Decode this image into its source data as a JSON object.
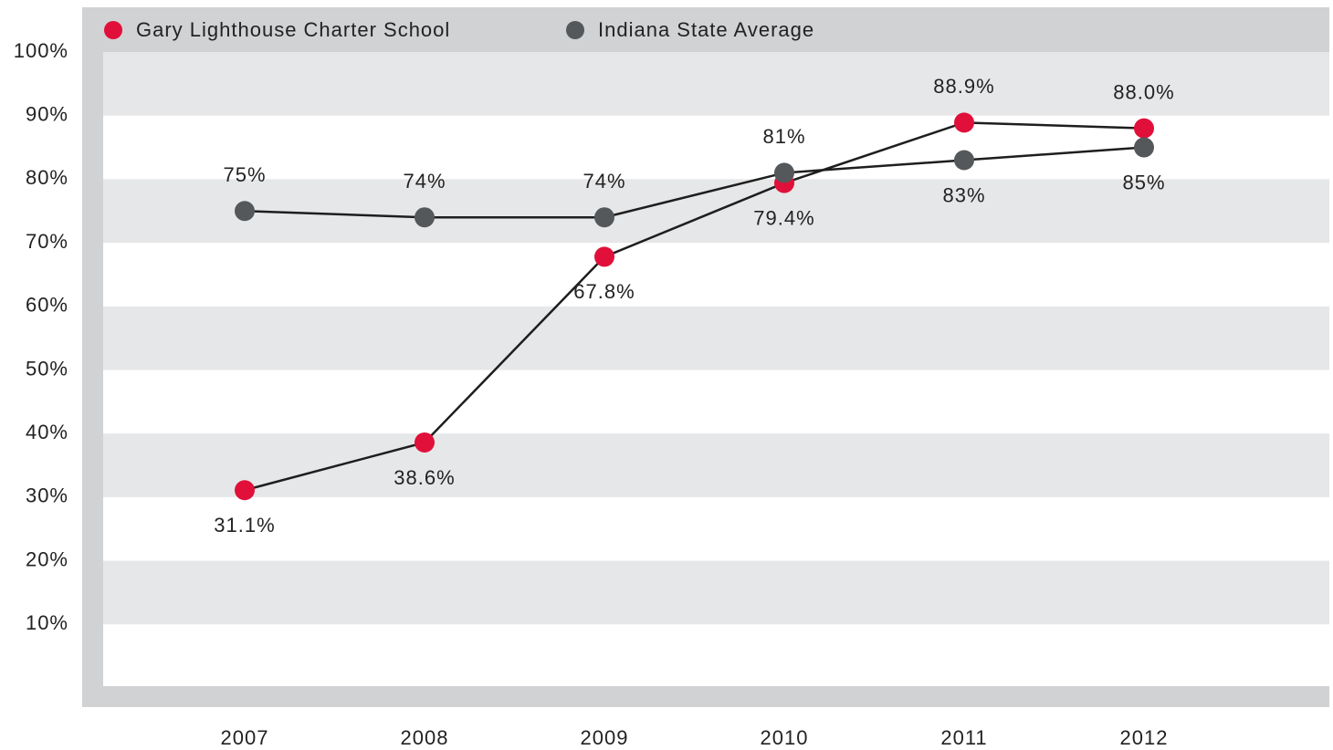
{
  "chart_data": {
    "type": "line",
    "categories": [
      "2007",
      "2008",
      "2009",
      "2010",
      "2011",
      "2012"
    ],
    "series": [
      {
        "name": "Gary Lighthouse Charter School",
        "color": "#e0103a",
        "values": [
          31.1,
          38.6,
          67.8,
          79.4,
          88.9,
          88.0
        ],
        "value_labels": [
          "31.1%",
          "38.6%",
          "67.8%",
          "79.4%",
          "88.9%",
          "88.0%"
        ]
      },
      {
        "name": "Indiana State Average",
        "color": "#55585b",
        "values": [
          75,
          74,
          74,
          81,
          83,
          85
        ],
        "value_labels": [
          "75%",
          "74%",
          "74%",
          "81%",
          "83%",
          "85%"
        ]
      }
    ],
    "ylim": [
      0,
      100
    ],
    "yticks": [
      {
        "value": 10,
        "label": "10%"
      },
      {
        "value": 20,
        "label": "20%"
      },
      {
        "value": 30,
        "label": "30%"
      },
      {
        "value": 40,
        "label": "40%"
      },
      {
        "value": 50,
        "label": "50%"
      },
      {
        "value": 60,
        "label": "60%"
      },
      {
        "value": 70,
        "label": "70%"
      },
      {
        "value": 80,
        "label": "80%"
      },
      {
        "value": 90,
        "label": "90%"
      },
      {
        "value": 100,
        "label": "100%"
      }
    ],
    "grid": true
  }
}
